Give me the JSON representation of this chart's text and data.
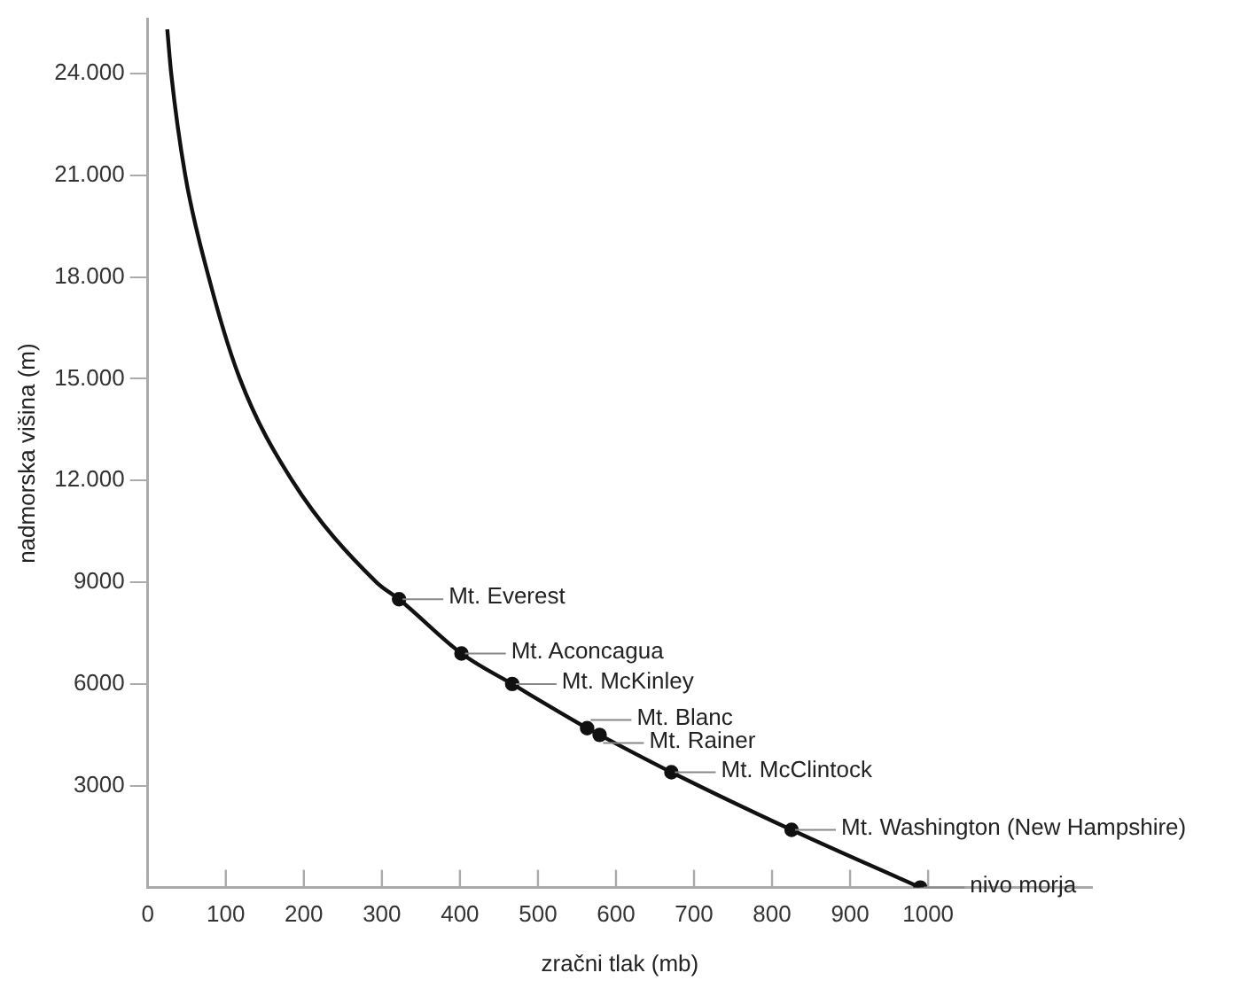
{
  "chart_data": {
    "type": "line",
    "xlabel": "zračni tlak (mb)",
    "ylabel": "nadmorska višina (m)",
    "xlim": [
      0,
      1210
    ],
    "ylim": [
      0,
      25600
    ],
    "xticks": [
      0,
      100,
      200,
      300,
      400,
      500,
      600,
      700,
      800,
      900,
      1000
    ],
    "yticks": [
      {
        "value": 3000,
        "label": "3000"
      },
      {
        "value": 6000,
        "label": "6000"
      },
      {
        "value": 9000,
        "label": "9000"
      },
      {
        "value": 12000,
        "label": "12.000"
      },
      {
        "value": 15000,
        "label": "15.000"
      },
      {
        "value": 18000,
        "label": "18.000"
      },
      {
        "value": 21000,
        "label": "21.000"
      },
      {
        "value": 24000,
        "label": "24.000"
      }
    ],
    "grid": false,
    "legend": false,
    "series": [
      {
        "color": "#111111",
        "marker": "none",
        "line_style": "solid",
        "x": [
          25,
          30,
          48,
          78,
          118,
          185,
          293,
          322,
          402,
          467,
          563,
          579,
          671,
          825,
          990
        ],
        "values": [
          25300,
          24000,
          21000,
          18000,
          15000,
          12000,
          9000,
          8500,
          6900,
          6000,
          4700,
          4500,
          3400,
          1700,
          0
        ]
      },
      {
        "type": "scatter",
        "color": "#111111",
        "marker": "circle",
        "x": [
          322,
          402,
          467,
          563,
          579,
          671,
          825,
          990
        ],
        "values": [
          8500,
          6900,
          6000,
          4700,
          4500,
          3400,
          1700,
          0
        ]
      }
    ],
    "annotations": [
      {
        "text": "Mt. Everest",
        "x": 322,
        "y": 8500
      },
      {
        "text": "Mt. Aconcagua",
        "x": 402,
        "y": 6900
      },
      {
        "text": "Mt. McKinley",
        "x": 467,
        "y": 6000
      },
      {
        "text": "Mt. Blanc",
        "x": 563,
        "y": 4700
      },
      {
        "text": "Mt. Rainer",
        "x": 579,
        "y": 4500
      },
      {
        "text": "Mt. McClintock",
        "x": 671,
        "y": 3400
      },
      {
        "text": "Mt. Washington (New Hampshire)",
        "x": 825,
        "y": 1700
      },
      {
        "text": "nivo morja",
        "x": 990,
        "y": 0
      }
    ]
  }
}
